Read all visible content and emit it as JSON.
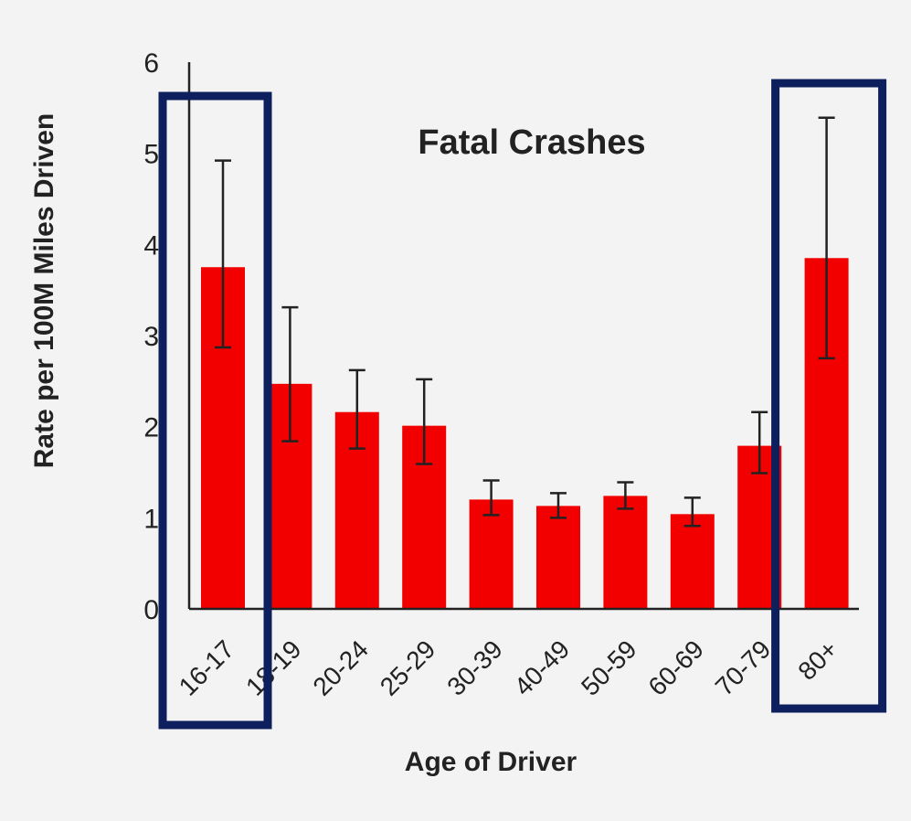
{
  "chart_data": {
    "type": "bar",
    "title": "Fatal Crashes",
    "xlabel": "Age of Driver",
    "ylabel": "Rate per 100M Miles Driven",
    "categories": [
      "16-17",
      "18-19",
      "20-24",
      "25-29",
      "30-39",
      "40-49",
      "50-59",
      "60-69",
      "70-79",
      "80+"
    ],
    "values": [
      3.75,
      2.47,
      2.16,
      2.01,
      1.2,
      1.13,
      1.24,
      1.04,
      1.79,
      3.85
    ],
    "error_low": [
      2.87,
      1.84,
      1.76,
      1.59,
      1.03,
      1.0,
      1.1,
      0.91,
      1.49,
      2.75
    ],
    "error_high": [
      4.92,
      3.31,
      2.62,
      2.52,
      1.41,
      1.27,
      1.39,
      1.22,
      2.16,
      5.39
    ],
    "ylim": [
      0,
      6
    ],
    "yticks": [
      0,
      1,
      2,
      3,
      4,
      5,
      6
    ],
    "grid": false,
    "legend": "none",
    "highlighted_categories": [
      "16-17",
      "80+"
    ],
    "colors": {
      "bar": "#f20000",
      "error_bar": "#222222",
      "axis": "#222222",
      "highlight_box": "#0d1f5c",
      "background": "#f3f3f3"
    }
  }
}
